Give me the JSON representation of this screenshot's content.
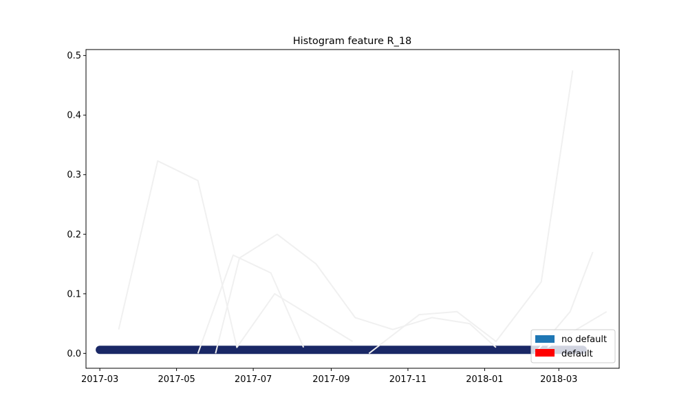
{
  "chart_data": {
    "type": "line",
    "title": "Histogram feature R_18",
    "xlabel": "",
    "ylabel": "",
    "x_range": [
      "2017-02-18",
      "2018-04-18"
    ],
    "ylim": [
      -0.025,
      0.51
    ],
    "x_ticks": [
      "2017-03",
      "2017-05",
      "2017-07",
      "2017-09",
      "2017-11",
      "2018-01",
      "2018-03"
    ],
    "y_ticks": [
      0.0,
      0.1,
      0.2,
      0.3,
      0.4,
      0.5
    ],
    "y_tick_labels": [
      "0.0",
      "0.1",
      "0.2",
      "0.3",
      "0.4",
      "0.5"
    ],
    "grid": false,
    "legend": {
      "position": "lower-right",
      "entries": [
        {
          "label": "no default",
          "color": "#1f77b4"
        },
        {
          "label": "default",
          "color": "#ff0000"
        }
      ]
    },
    "series": [
      {
        "color": "#1a2866",
        "band": true,
        "values": [
          [
            "2017-03-01",
            0.006
          ],
          [
            "2017-04-01",
            0.006
          ],
          [
            "2017-05-01",
            0.006
          ],
          [
            "2017-06-01",
            0.006
          ],
          [
            "2017-07-01",
            0.006
          ],
          [
            "2017-08-01",
            0.006
          ],
          [
            "2017-09-01",
            0.006
          ],
          [
            "2017-10-01",
            0.006
          ],
          [
            "2017-11-01",
            0.006
          ],
          [
            "2017-12-01",
            0.006
          ],
          [
            "2018-01-01",
            0.006
          ],
          [
            "2018-02-01",
            0.006
          ],
          [
            "2018-03-20",
            0.006
          ]
        ]
      },
      {
        "color": "#f0f0f0",
        "values": [
          [
            "2017-03-16",
            0.04
          ],
          [
            "2017-04-16",
            0.323
          ],
          [
            "2017-05-18",
            0.29
          ],
          [
            "2017-06-18",
            0.01
          ],
          [
            "2017-07-18",
            0.1
          ],
          [
            "2017-08-18",
            0.06
          ],
          [
            "2017-09-18",
            0.02
          ]
        ]
      },
      {
        "color": "#f0f0f0",
        "values": [
          [
            "2017-05-18",
            0.0
          ],
          [
            "2017-06-15",
            0.165
          ],
          [
            "2017-07-15",
            0.135
          ],
          [
            "2017-08-10",
            0.01
          ]
        ]
      },
      {
        "color": "#f0f0f0",
        "values": [
          [
            "2017-06-01",
            0.0
          ],
          [
            "2017-06-20",
            0.16
          ],
          [
            "2017-07-20",
            0.2
          ],
          [
            "2017-08-20",
            0.15
          ],
          [
            "2017-09-20",
            0.06
          ],
          [
            "2017-10-20",
            0.04
          ],
          [
            "2017-11-20",
            0.06
          ],
          [
            "2017-12-20",
            0.05
          ],
          [
            "2018-01-10",
            0.01
          ]
        ]
      },
      {
        "color": "#f0f0f0",
        "values": [
          [
            "2017-10-01",
            0.0
          ],
          [
            "2017-11-10",
            0.065
          ],
          [
            "2017-12-10",
            0.07
          ],
          [
            "2018-01-10",
            0.02
          ],
          [
            "2018-02-15",
            0.12
          ],
          [
            "2018-03-12",
            0.475
          ]
        ]
      },
      {
        "color": "#f0f0f0",
        "values": [
          [
            "2018-02-10",
            0.0
          ],
          [
            "2018-03-10",
            0.07
          ],
          [
            "2018-03-28",
            0.17
          ]
        ]
      },
      {
        "color": "#f0f0f0",
        "values": [
          [
            "2018-02-20",
            0.01
          ],
          [
            "2018-03-15",
            0.04
          ],
          [
            "2018-04-08",
            0.07
          ]
        ]
      }
    ]
  }
}
